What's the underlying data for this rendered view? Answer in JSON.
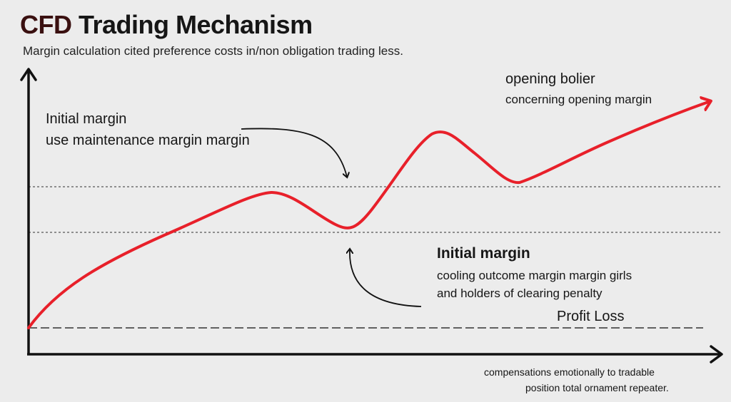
{
  "title": {
    "prefix": "CFD",
    "rest": " Trading Mechanism"
  },
  "subtitle": "Margin calculation cited preference costs in/non obligation trading less.",
  "annotations": {
    "upper_left": {
      "heading": "Initial margin",
      "text": "use maintenance margin margin"
    },
    "upper_right": {
      "heading": "opening bolier",
      "text": "concerning opening margin"
    },
    "lower_middle": {
      "heading": "Initial margin",
      "line1": "cooling outcome margin margin girls",
      "line2": "and holders of clearing penalty"
    },
    "profit_loss": "Profit Loss",
    "footer_line1": "compensations emotionally to tradable",
    "footer_line2": "position total ornament repeater."
  },
  "colors": {
    "curve": "#e8202a",
    "axis": "#111111",
    "guide": "#444444",
    "background": "#ececec"
  }
}
